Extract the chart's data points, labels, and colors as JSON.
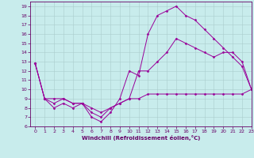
{
  "background_color": "#c8ecec",
  "grid_color": "#aacccc",
  "line_color": "#990099",
  "xlim": [
    -0.5,
    23
  ],
  "ylim": [
    6,
    19.5
  ],
  "xticks": [
    0,
    1,
    2,
    3,
    4,
    5,
    6,
    7,
    8,
    9,
    10,
    11,
    12,
    13,
    14,
    15,
    16,
    17,
    18,
    19,
    20,
    21,
    22,
    23
  ],
  "yticks": [
    6,
    7,
    8,
    9,
    10,
    11,
    12,
    13,
    14,
    15,
    16,
    17,
    18,
    19
  ],
  "xlabel": "Windchill (Refroidissement éolien,°C)",
  "series": [
    {
      "x": [
        0,
        1,
        2,
        3,
        4,
        5,
        6,
        7,
        8,
        9,
        10,
        11,
        12,
        13,
        14,
        15,
        16,
        17,
        18,
        19,
        20,
        21,
        22,
        23
      ],
      "y": [
        12.8,
        9.0,
        8.5,
        9.0,
        8.5,
        8.5,
        7.0,
        6.5,
        7.5,
        9.0,
        12.0,
        11.5,
        16.0,
        18.0,
        18.5,
        19.0,
        18.0,
        17.5,
        16.5,
        15.5,
        14.5,
        13.5,
        12.5,
        10.0
      ]
    },
    {
      "x": [
        0,
        1,
        2,
        3,
        4,
        5,
        6,
        7,
        8,
        9,
        10,
        11,
        12,
        13,
        14,
        15,
        16,
        17,
        18,
        19,
        20,
        21,
        22,
        23
      ],
      "y": [
        12.8,
        9.0,
        8.0,
        8.5,
        8.0,
        8.5,
        7.5,
        7.0,
        8.0,
        8.5,
        9.0,
        12.0,
        12.0,
        13.0,
        14.0,
        15.5,
        15.0,
        14.5,
        14.0,
        13.5,
        14.0,
        14.0,
        13.0,
        10.0
      ]
    },
    {
      "x": [
        0,
        1,
        2,
        3,
        4,
        5,
        6,
        7,
        8,
        9,
        10,
        11,
        12,
        13,
        14,
        15,
        16,
        17,
        18,
        19,
        20,
        21,
        22,
        23
      ],
      "y": [
        12.8,
        9.0,
        9.0,
        9.0,
        8.5,
        8.5,
        8.0,
        7.5,
        8.0,
        8.5,
        9.0,
        9.0,
        9.5,
        9.5,
        9.5,
        9.5,
        9.5,
        9.5,
        9.5,
        9.5,
        9.5,
        9.5,
        9.5,
        10.0
      ]
    }
  ]
}
